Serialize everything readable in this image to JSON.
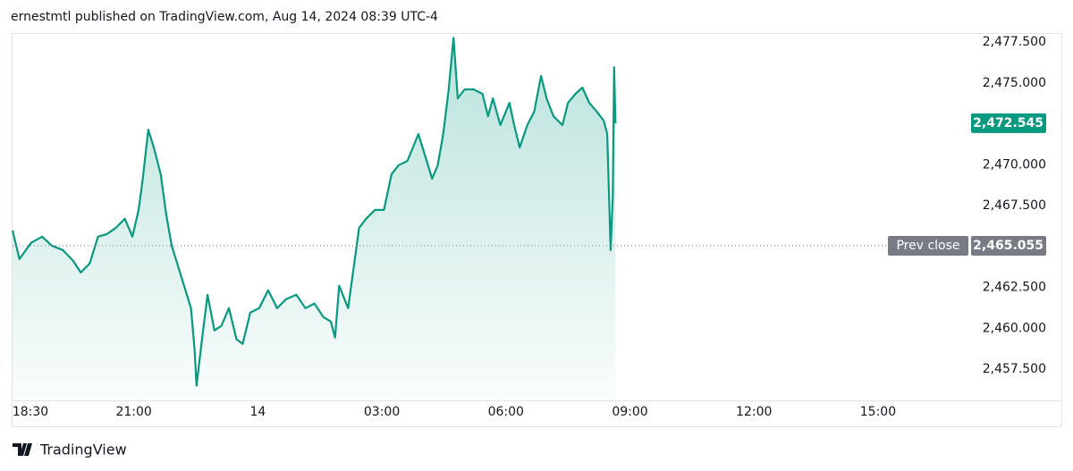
{
  "chart_data": {
    "type": "area",
    "title": "ernestmtl published on TradingView.com, Aug 14, 2024 08:39 UTC-4",
    "brand": "TradingView",
    "x": [
      "2024-08-13T18:04",
      "2024-08-13T18:14",
      "2024-08-13T18:31",
      "2024-08-13T18:47",
      "2024-08-13T19:01",
      "2024-08-13T19:17",
      "2024-08-13T19:32",
      "2024-08-13T19:43",
      "2024-08-13T19:56",
      "2024-08-13T20:08",
      "2024-08-13T20:21",
      "2024-08-13T20:34",
      "2024-08-13T20:47",
      "2024-08-13T20:58",
      "2024-08-13T21:07",
      "2024-08-13T21:13",
      "2024-08-13T21:21",
      "2024-08-13T21:29",
      "2024-08-13T21:39",
      "2024-08-13T21:47",
      "2024-08-13T21:55",
      "2024-08-13T22:05",
      "2024-08-13T22:15",
      "2024-08-13T22:23",
      "2024-08-13T22:28",
      "2024-08-13T22:31",
      "2024-08-13T22:39",
      "2024-08-13T22:47",
      "2024-08-13T22:57",
      "2024-08-13T23:07",
      "2024-08-13T23:18",
      "2024-08-13T23:29",
      "2024-08-13T23:38",
      "2024-08-13T23:49",
      "2024-08-14T00:02",
      "2024-08-14T00:15",
      "2024-08-14T00:28",
      "2024-08-14T00:41",
      "2024-08-14T00:56",
      "2024-08-14T01:09",
      "2024-08-14T01:22",
      "2024-08-14T01:35",
      "2024-08-14T01:46",
      "2024-08-14T01:52",
      "2024-08-14T01:58",
      "2024-08-14T02:11",
      "2024-08-14T02:19",
      "2024-08-14T02:27",
      "2024-08-14T02:37",
      "2024-08-14T02:50",
      "2024-08-14T03:03",
      "2024-08-14T03:14",
      "2024-08-14T03:24",
      "2024-08-14T03:37",
      "2024-08-14T03:45",
      "2024-08-14T03:53",
      "2024-08-14T04:03",
      "2024-08-14T04:13",
      "2024-08-14T04:21",
      "2024-08-14T04:29",
      "2024-08-14T04:37",
      "2024-08-14T04:44",
      "2024-08-14T04:50",
      "2024-08-14T05:00",
      "2024-08-14T05:13",
      "2024-08-14T05:26",
      "2024-08-14T05:34",
      "2024-08-14T05:41",
      "2024-08-14T05:52",
      "2024-08-14T06:05",
      "2024-08-14T06:12",
      "2024-08-14T06:20",
      "2024-08-14T06:31",
      "2024-08-14T06:41",
      "2024-08-14T06:51",
      "2024-08-14T06:59",
      "2024-08-14T07:09",
      "2024-08-14T07:22",
      "2024-08-14T07:30",
      "2024-08-14T07:41",
      "2024-08-14T07:51",
      "2024-08-14T08:01",
      "2024-08-14T08:12",
      "2024-08-14T08:22",
      "2024-08-14T08:27",
      "2024-08-14T08:32",
      "2024-08-14T08:35",
      "2024-08-14T08:37",
      "2024-08-14T08:39"
    ],
    "series": [
      {
        "color": "#089981",
        "values": [
          2465.99,
          2464.24,
          2465.23,
          2465.61,
          2465.06,
          2464.79,
          2464.13,
          2463.42,
          2463.97,
          2465.61,
          2465.77,
          2466.15,
          2466.7,
          2465.61,
          2467.24,
          2469.15,
          2472.15,
          2471.06,
          2469.43,
          2466.97,
          2465.06,
          2463.7,
          2462.33,
          2461.24,
          2458.79,
          2456.5,
          2459.33,
          2462.06,
          2459.88,
          2460.15,
          2461.24,
          2459.33,
          2459.06,
          2460.97,
          2461.24,
          2462.33,
          2461.24,
          2461.79,
          2462.06,
          2461.24,
          2461.52,
          2460.7,
          2460.42,
          2459.44,
          2462.61,
          2461.24,
          2463.7,
          2466.15,
          2466.7,
          2467.24,
          2467.24,
          2469.43,
          2469.97,
          2470.24,
          2471.06,
          2471.88,
          2470.52,
          2469.15,
          2469.97,
          2471.88,
          2474.61,
          2477.77,
          2474.06,
          2474.61,
          2474.61,
          2474.34,
          2472.97,
          2474.06,
          2472.43,
          2473.79,
          2472.43,
          2471.06,
          2472.43,
          2473.24,
          2475.43,
          2474.06,
          2472.97,
          2472.43,
          2473.79,
          2474.34,
          2474.72,
          2473.79,
          2473.24,
          2472.7,
          2471.88,
          2464.79,
          2468.06,
          2475.97,
          2472.545
        ]
      }
    ],
    "xlim": [
      "2024-08-13T18:04",
      "2024-08-14T17:15"
    ],
    "xticks": [
      {
        "value": "2024-08-13T18:30",
        "label": "18:30"
      },
      {
        "value": "2024-08-13T21:00",
        "label": "21:00"
      },
      {
        "value": "2024-08-14T00:00",
        "label": "14"
      },
      {
        "value": "2024-08-14T03:00",
        "label": "03:00"
      },
      {
        "value": "2024-08-14T06:00",
        "label": "06:00"
      },
      {
        "value": "2024-08-14T09:00",
        "label": "09:00"
      },
      {
        "value": "2024-08-14T12:00",
        "label": "12:00"
      },
      {
        "value": "2024-08-14T15:00",
        "label": "15:00"
      }
    ],
    "ylim": [
      2455.6,
      2478
    ],
    "yticks": [
      {
        "value": 2457.5,
        "label": "2,457.500"
      },
      {
        "value": 2460,
        "label": "2,460.000"
      },
      {
        "value": 2462.5,
        "label": "2,462.500"
      },
      {
        "value": 2467.5,
        "label": "2,467.500"
      },
      {
        "value": 2470,
        "label": "2,470.000"
      },
      {
        "value": 2475,
        "label": "2,475.000"
      },
      {
        "value": 2477.5,
        "label": "2,477.500"
      }
    ],
    "price_tag": {
      "value": 2472.545,
      "label": "2,472.545",
      "color": "#089981"
    },
    "reference": {
      "name": "Prev close",
      "value": 2465.055,
      "label": "2,465.055",
      "color": "#787b86"
    },
    "grid": false
  }
}
